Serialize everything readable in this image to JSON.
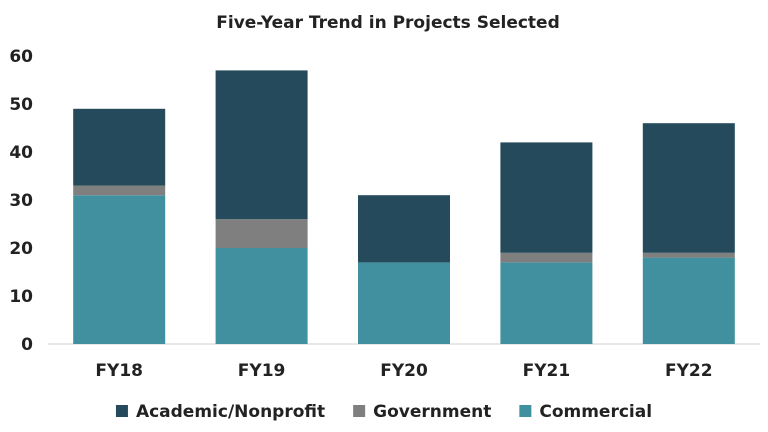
{
  "chart_data": {
    "type": "bar",
    "stacked": true,
    "title": "Five-Year Trend in Projects Selected",
    "xlabel": "",
    "ylabel": "",
    "categories": [
      "FY18",
      "FY19",
      "FY20",
      "FY21",
      "FY22"
    ],
    "ylim": [
      0,
      60
    ],
    "yticks": [
      0,
      10,
      20,
      30,
      40,
      50,
      60
    ],
    "grid": false,
    "legend_position": "bottom",
    "series": [
      {
        "name": "Commercial",
        "values": [
          31,
          20,
          17,
          17,
          18
        ],
        "color": "#41909f"
      },
      {
        "name": "Government",
        "values": [
          2,
          6,
          0,
          2,
          1
        ],
        "color": "#7f7f7f"
      },
      {
        "name": "Academic/Nonprofit",
        "values": [
          16,
          31,
          14,
          23,
          27
        ],
        "color": "#244a5c"
      }
    ],
    "legend_order": [
      "Academic/Nonprofit",
      "Government",
      "Commercial"
    ]
  }
}
